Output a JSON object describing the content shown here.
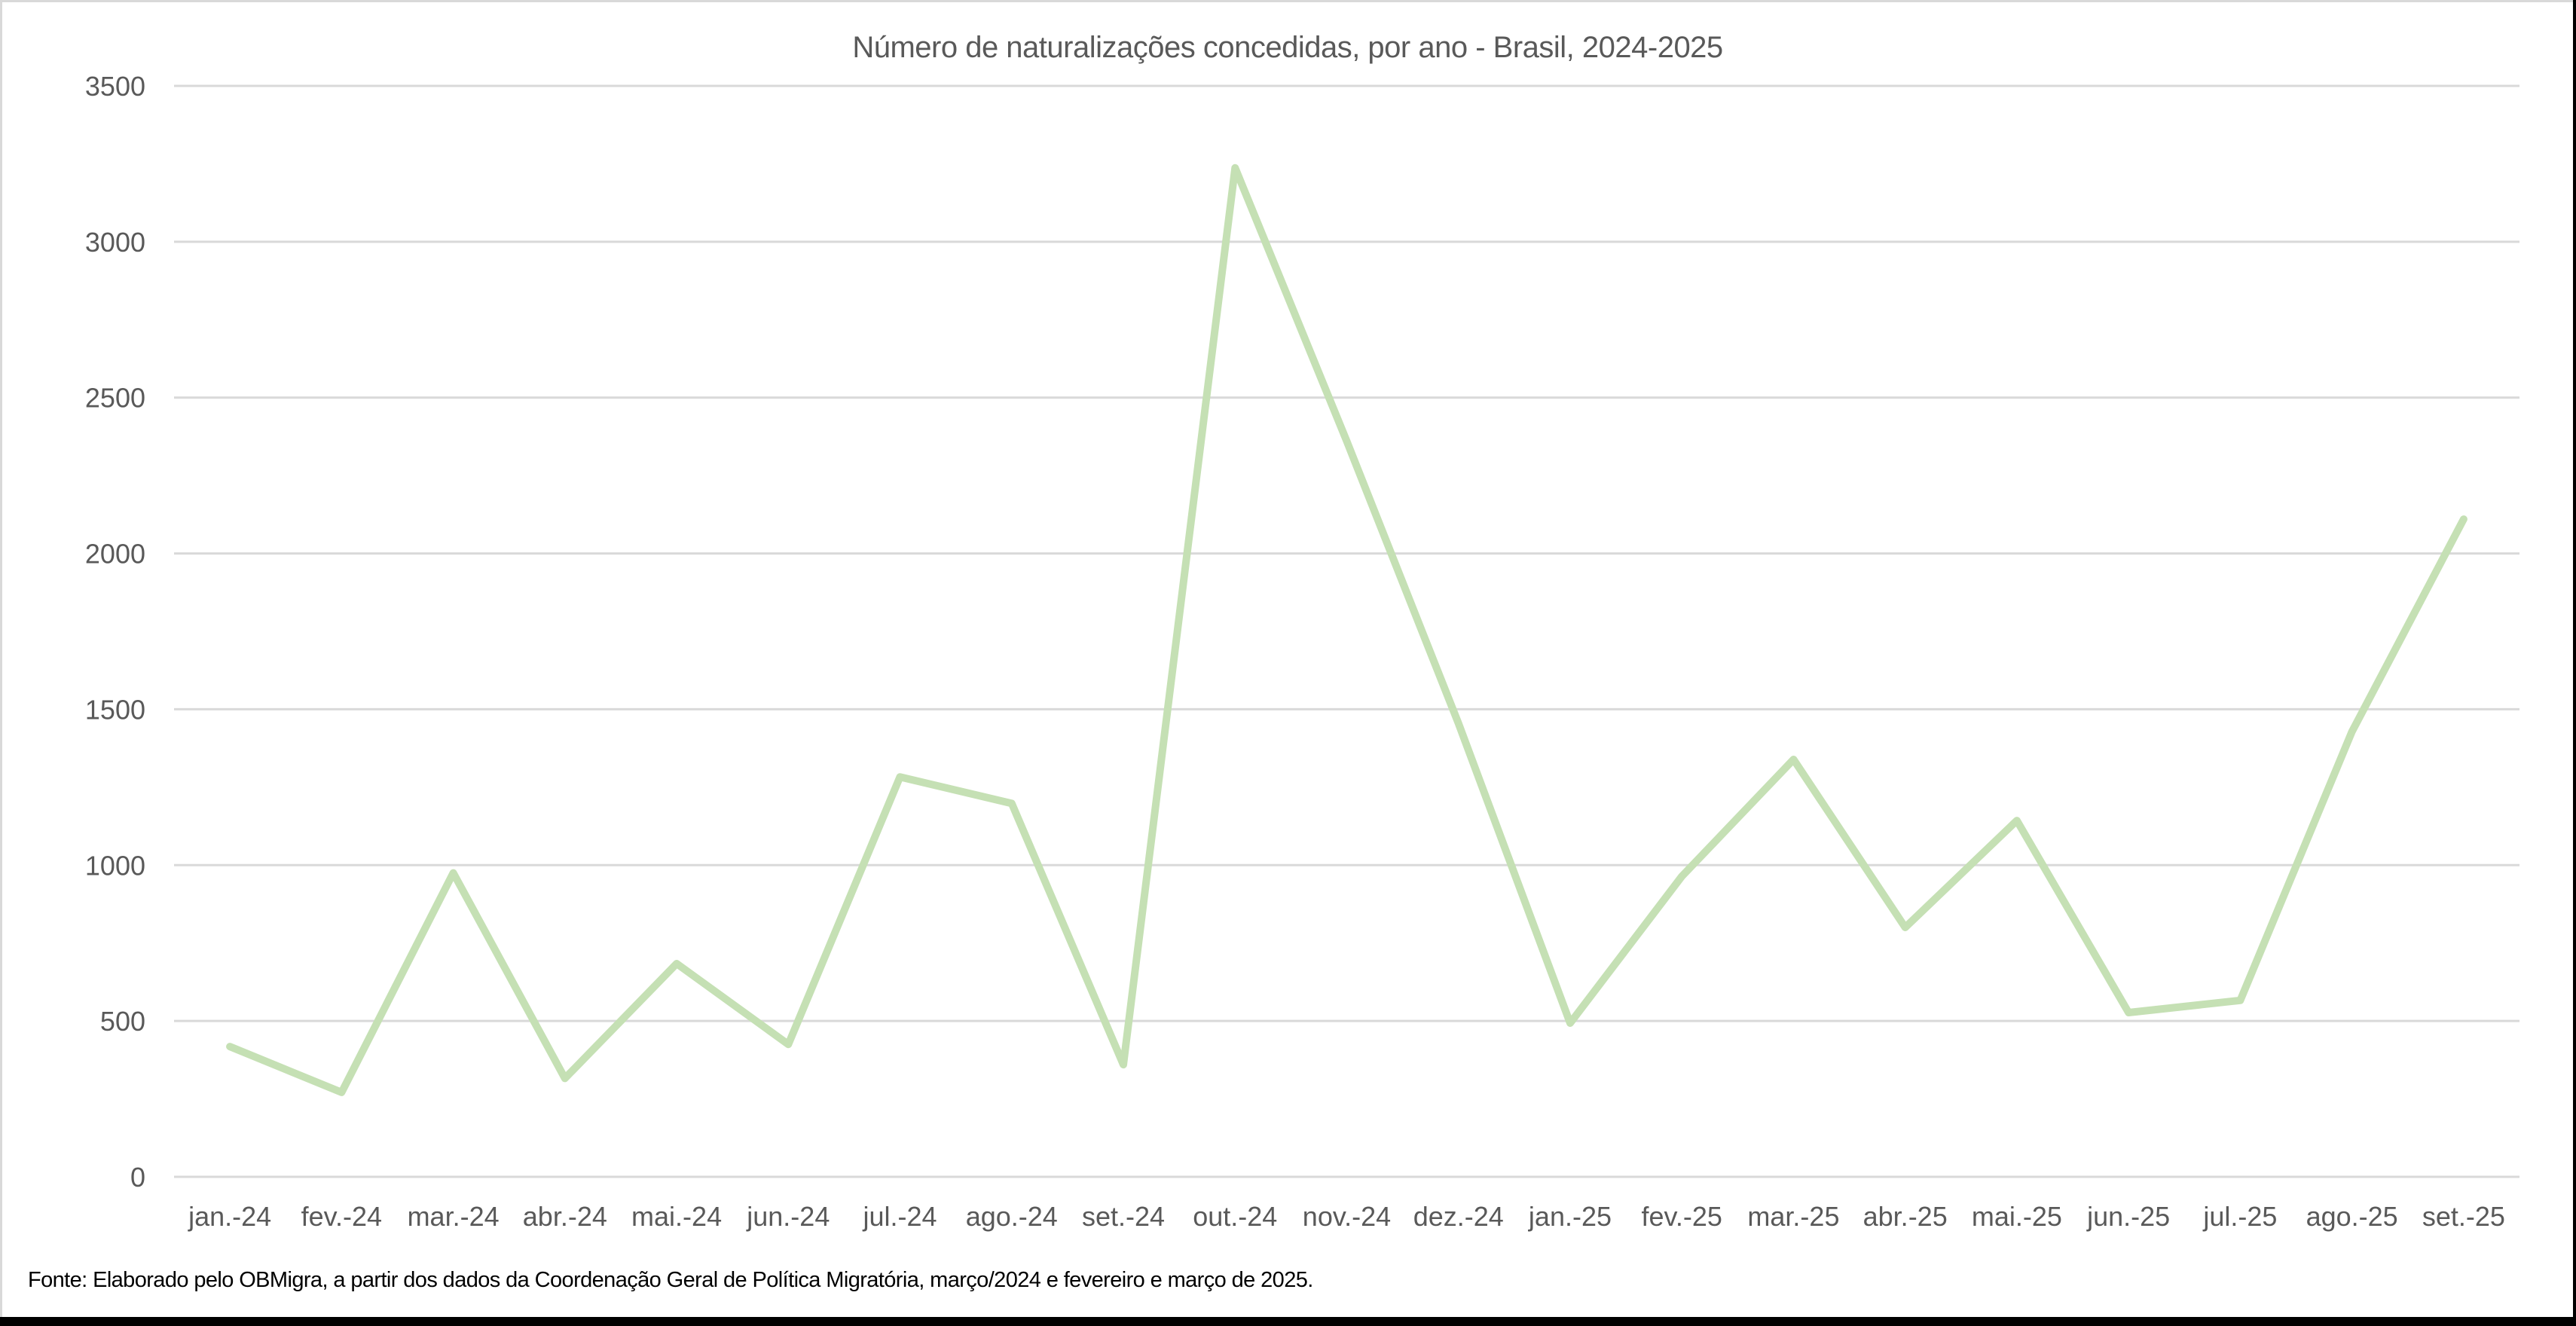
{
  "chart_data": {
    "type": "line",
    "title": "Número de naturalizações concedidas, por ano - Brasil, 2024-2025",
    "xlabel": "",
    "ylabel": "",
    "ylim": [
      0,
      3500
    ],
    "yticks": [
      0,
      500,
      1000,
      1500,
      2000,
      2500,
      3000,
      3500
    ],
    "grid": true,
    "legend": null,
    "categories": [
      "jan.-24",
      "fev.-24",
      "mar.-24",
      "abr.-24",
      "mai.-24",
      "jun.-24",
      "jul.-24",
      "ago.-24",
      "set.-24",
      "out.-24",
      "nov.-24",
      "dez.-24",
      "jan.-25",
      "fev.-25",
      "mar.-25",
      "abr.-25",
      "mai.-25",
      "jun.-25",
      "jul.-25",
      "ago.-25",
      "set.-25"
    ],
    "series": [
      {
        "name": "Naturalizações",
        "color": "#c5e0b4",
        "values": [
          418,
          271,
          975,
          316,
          684,
          425,
          1283,
          1198,
          360,
          3237,
          2360,
          1455,
          493,
          964,
          1339,
          800,
          1143,
          527,
          566,
          1428,
          2110
        ]
      }
    ]
  },
  "source_note": "Fonte: Elaborado pelo OBMigra, a partir dos dados da Coordenação Geral de Política Migratória, março/2024 e fevereiro e março de 2025.",
  "colors": {
    "line": "#c5e0b4",
    "grid": "#d9d9d9",
    "text": "#595959"
  }
}
